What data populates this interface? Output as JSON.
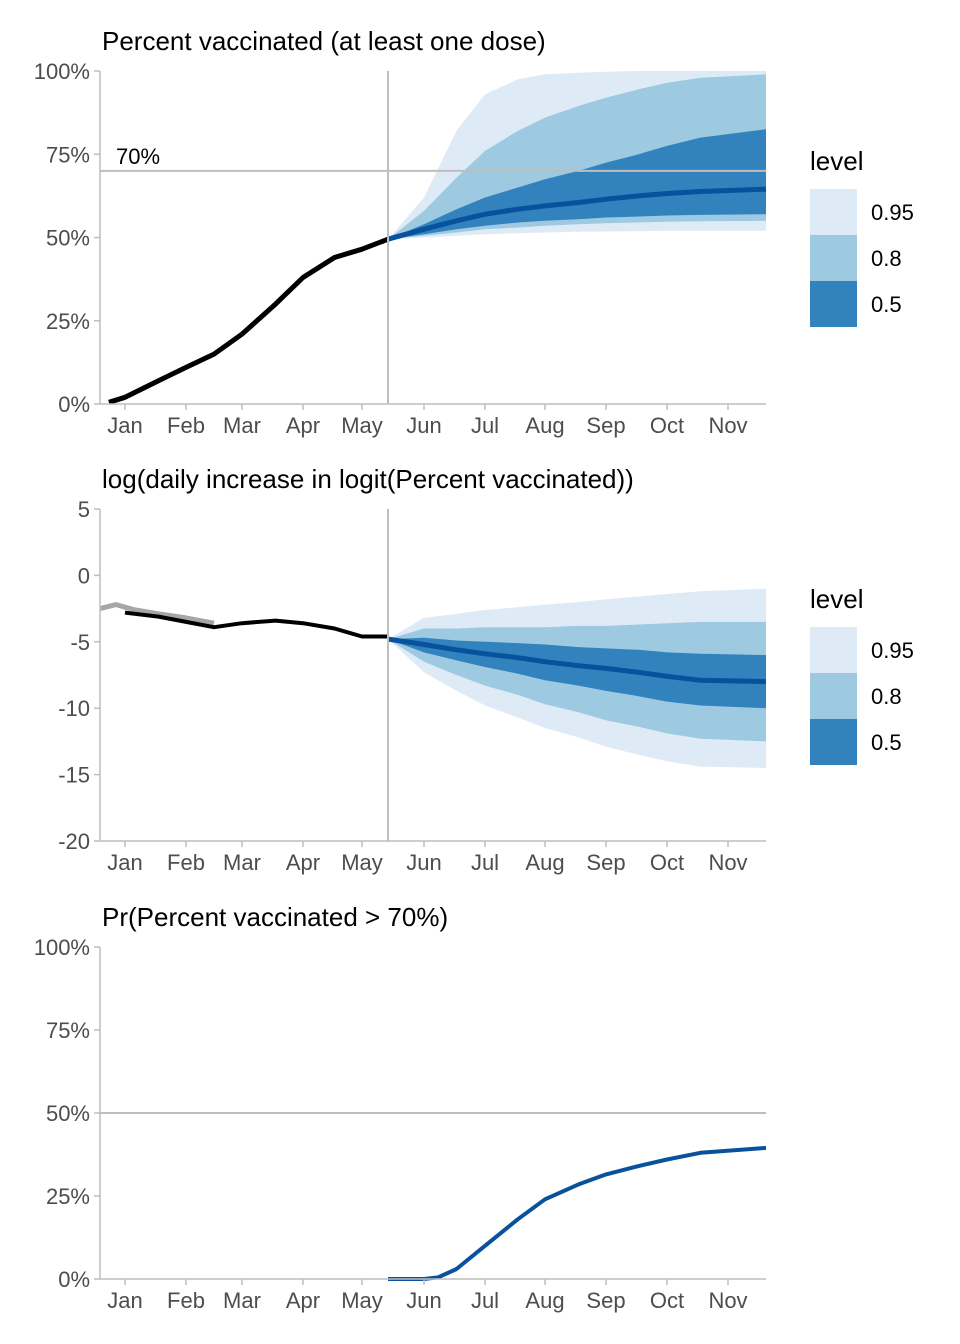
{
  "chart_data": [
    {
      "type": "line",
      "title": "Percent vaccinated (at least one dose)",
      "x_axis": "date",
      "ylim": [
        0,
        100
      ],
      "y_ticks": [
        "0%",
        "25%",
        "50%",
        "75%",
        "100%"
      ],
      "x_ticks": [
        "Jan",
        "Feb",
        "Mar",
        "Apr",
        "May",
        "Jun",
        "Jul",
        "Aug",
        "Sep",
        "Oct",
        "Nov"
      ],
      "forecast_start": "2021-05-28",
      "reference_line": {
        "y": 70,
        "label": "70%"
      },
      "observed": {
        "x": [
          "2021-01-06",
          "2021-01-15",
          "2021-02-01",
          "2021-02-15",
          "2021-03-01",
          "2021-03-15",
          "2021-04-01",
          "2021-04-15",
          "2021-05-01",
          "2021-05-15",
          "2021-05-28"
        ],
        "y": [
          0.5,
          2,
          7,
          11,
          15,
          21,
          30,
          38,
          44,
          46.5,
          49.5
        ]
      },
      "forecast": {
        "x": [
          "2021-05-28",
          "2021-06-15",
          "2021-07-01",
          "2021-07-15",
          "2021-08-01",
          "2021-08-15",
          "2021-09-01",
          "2021-09-15",
          "2021-10-01",
          "2021-10-15",
          "2021-11-01",
          "2021-11-20"
        ],
        "median": [
          49.5,
          52.5,
          55,
          57,
          58.5,
          59.5,
          60.5,
          61.5,
          62.5,
          63.2,
          63.8,
          64.5
        ],
        "band_50_low": [
          49.5,
          51,
          52.5,
          53.5,
          54.5,
          55,
          55.5,
          56,
          56.3,
          56.6,
          56.8,
          57
        ],
        "band_50_high": [
          49.5,
          54,
          58.5,
          62,
          65,
          67.5,
          70,
          72.5,
          75,
          77.5,
          80,
          82.5
        ],
        "band_80_low": [
          49.5,
          50.5,
          51.5,
          52.5,
          53,
          53.5,
          54,
          54.3,
          54.5,
          54.7,
          54.9,
          55
        ],
        "band_80_high": [
          49.5,
          58,
          68,
          76,
          82,
          86,
          89.5,
          92,
          94.5,
          96.5,
          98,
          99
        ],
        "band_95_low": [
          49.5,
          50,
          50.5,
          51,
          51.3,
          51.5,
          51.7,
          51.8,
          51.9,
          52,
          52,
          52
        ],
        "band_95_high": [
          49.5,
          62,
          82,
          93,
          97.5,
          99,
          99.5,
          99.8,
          100,
          100,
          100,
          100
        ]
      },
      "legend": {
        "title": "level",
        "placement": "right",
        "levels": [
          "0.95",
          "0.8",
          "0.5"
        ]
      }
    },
    {
      "type": "line",
      "title": "log(daily increase in logit(Percent vaccinated))",
      "x_axis": "date",
      "ylim": [
        -20,
        5
      ],
      "y_ticks": [
        "-20",
        "-15",
        "-10",
        "-5",
        "0",
        "5"
      ],
      "x_ticks": [
        "Jan",
        "Feb",
        "Mar",
        "Apr",
        "May",
        "Jun",
        "Jul",
        "Aug",
        "Sep",
        "Oct",
        "Nov"
      ],
      "forecast_start": "2021-05-28",
      "observed_excluded": {
        "x": [
          "2021-01-01",
          "2021-01-10",
          "2021-01-20",
          "2021-02-01",
          "2021-02-15",
          "2021-03-01"
        ],
        "y": [
          -2.5,
          -2.2,
          -2.6,
          -2.9,
          -3.2,
          -3.6
        ]
      },
      "observed": {
        "x": [
          "2021-01-15",
          "2021-02-01",
          "2021-02-15",
          "2021-03-01",
          "2021-03-15",
          "2021-04-01",
          "2021-04-15",
          "2021-05-01",
          "2021-05-15",
          "2021-05-28"
        ],
        "y": [
          -2.8,
          -3.1,
          -3.5,
          -3.9,
          -3.6,
          -3.4,
          -3.6,
          -4.0,
          -4.6,
          -4.6
        ]
      },
      "forecast": {
        "x": [
          "2021-05-28",
          "2021-06-15",
          "2021-07-01",
          "2021-07-15",
          "2021-08-01",
          "2021-08-15",
          "2021-09-01",
          "2021-09-15",
          "2021-10-01",
          "2021-10-15",
          "2021-11-01",
          "2021-11-20"
        ],
        "median": [
          -4.8,
          -5.2,
          -5.6,
          -5.9,
          -6.2,
          -6.5,
          -6.8,
          -7.0,
          -7.3,
          -7.6,
          -7.9,
          -8.0
        ],
        "band_50_low": [
          -4.8,
          -5.8,
          -6.4,
          -6.9,
          -7.4,
          -7.9,
          -8.3,
          -8.7,
          -9.1,
          -9.5,
          -9.8,
          -10.0
        ],
        "band_50_high": [
          -4.8,
          -4.7,
          -4.9,
          -5.0,
          -5.1,
          -5.2,
          -5.4,
          -5.5,
          -5.6,
          -5.8,
          -5.9,
          -6.0
        ],
        "band_80_low": [
          -4.8,
          -6.5,
          -7.5,
          -8.3,
          -9.0,
          -9.7,
          -10.3,
          -10.9,
          -11.4,
          -11.9,
          -12.3,
          -12.5
        ],
        "band_80_high": [
          -4.8,
          -4.0,
          -4.0,
          -3.9,
          -3.9,
          -3.9,
          -3.8,
          -3.8,
          -3.7,
          -3.6,
          -3.5,
          -3.5
        ],
        "band_95_low": [
          -4.8,
          -7.3,
          -8.7,
          -9.8,
          -10.7,
          -11.5,
          -12.2,
          -12.9,
          -13.5,
          -14.0,
          -14.4,
          -14.5
        ],
        "band_95_high": [
          -4.8,
          -3.2,
          -2.9,
          -2.6,
          -2.4,
          -2.2,
          -2.0,
          -1.8,
          -1.6,
          -1.4,
          -1.2,
          -1.0
        ]
      },
      "legend": {
        "title": "level",
        "placement": "right",
        "levels": [
          "0.95",
          "0.8",
          "0.5"
        ]
      }
    },
    {
      "type": "line",
      "title": "Pr(Percent vaccinated > 70%)",
      "x_axis": "date",
      "ylim": [
        0,
        100
      ],
      "y_ticks": [
        "0%",
        "25%",
        "50%",
        "75%",
        "100%"
      ],
      "x_ticks": [
        "Jan",
        "Feb",
        "Mar",
        "Apr",
        "May",
        "Jun",
        "Jul",
        "Aug",
        "Sep",
        "Oct",
        "Nov"
      ],
      "reference_line": {
        "y": 50
      },
      "series": [
        {
          "x": [
            "2021-05-28",
            "2021-06-15",
            "2021-06-22",
            "2021-07-01",
            "2021-07-15",
            "2021-08-01",
            "2021-08-15",
            "2021-09-01",
            "2021-09-15",
            "2021-10-01",
            "2021-10-15",
            "2021-11-01",
            "2021-11-20"
          ],
          "values": [
            0,
            0,
            0.5,
            3,
            10,
            18,
            24,
            28.5,
            31.5,
            34,
            36,
            38,
            39.5
          ]
        }
      ]
    }
  ],
  "colors": {
    "band_95": "#deebf7",
    "band_80": "#9ecae1",
    "band_50": "#3182bd",
    "median": "#08519c",
    "observed": "#000000",
    "observed_excluded": "#a6a6a6",
    "reference": "#bebebe",
    "axis": "#bebebe"
  }
}
